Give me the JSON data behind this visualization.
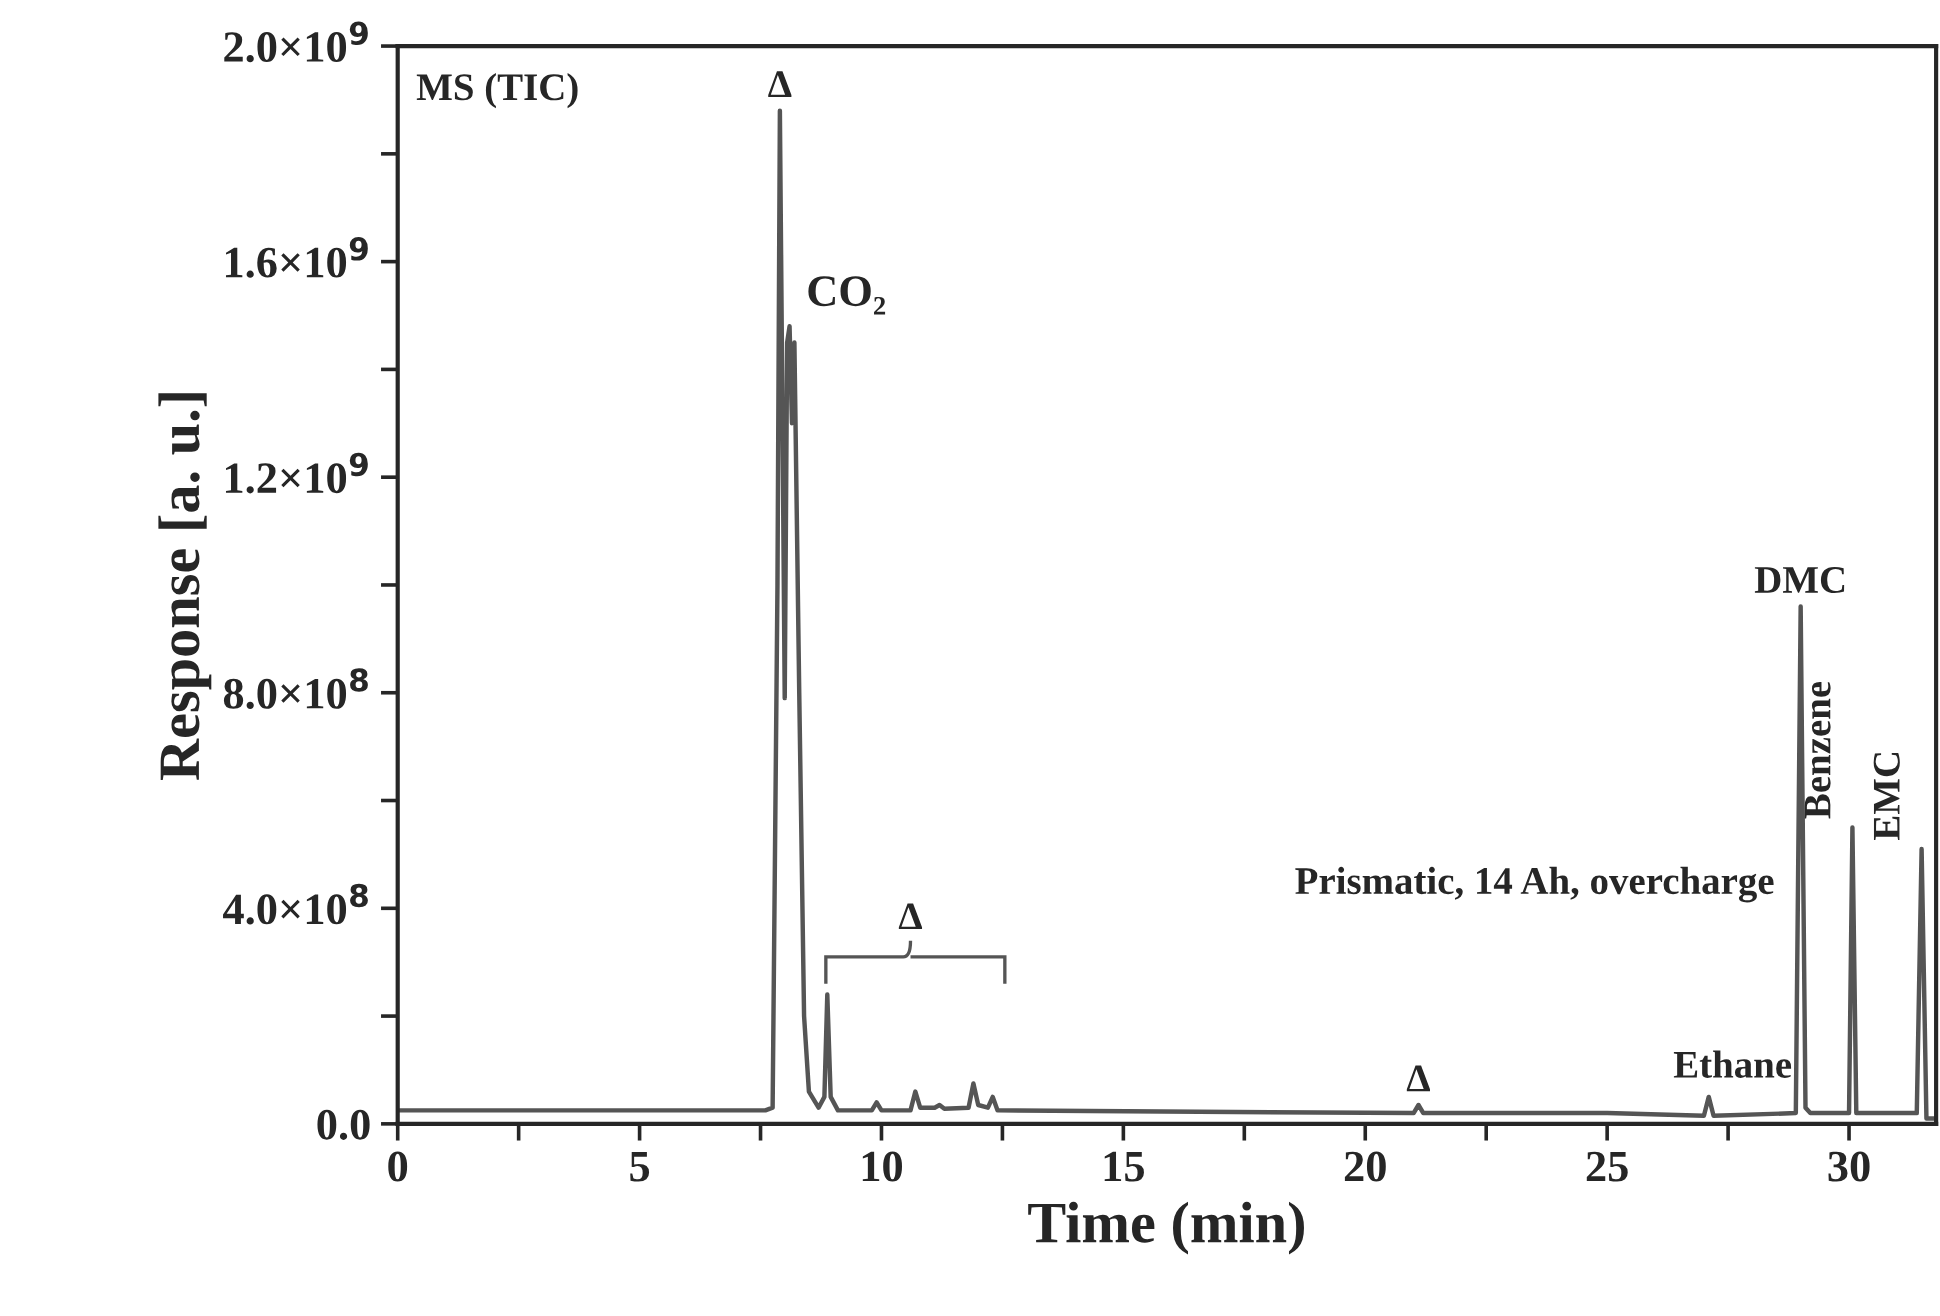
{
  "chart_data": {
    "type": "line",
    "xlabel": "Time (min)",
    "ylabel": "Response [a. u.]",
    "x": [
      0,
      7.6,
      7.75,
      7.85,
      7.9,
      7.95,
      8.0,
      8.05,
      8.1,
      8.15,
      8.2,
      8.3,
      8.4,
      8.5,
      8.7,
      8.82,
      8.88,
      8.95,
      9.1,
      9.8,
      9.9,
      10.0,
      10.6,
      10.7,
      10.8,
      11.1,
      11.2,
      11.3,
      11.8,
      11.9,
      12.0,
      12.2,
      12.3,
      12.4,
      21.0,
      21.1,
      21.2,
      25,
      27.0,
      27.1,
      27.2,
      28.9,
      29.0,
      29.1,
      29.2,
      30.0,
      30.07,
      30.15,
      31.4,
      31.5,
      31.6,
      31.8
    ],
    "series": [
      {
        "color": "#555555",
        "values": [
          25000000.0,
          25000000.0,
          30000000.0,
          1000000000.0,
          1880000000.0,
          1350000000.0,
          790000000.0,
          1450000000.0,
          1480000000.0,
          1300000000.0,
          1450000000.0,
          800000000.0,
          200000000.0,
          60000000.0,
          30000000.0,
          50000000.0,
          240000000.0,
          50000000.0,
          25000000.0,
          25000000.0,
          40000000.0,
          25000000.0,
          25000000.0,
          60000000.0,
          30000000.0,
          30000000.0,
          35000000.0,
          28000000.0,
          30000000.0,
          75000000.0,
          35000000.0,
          30000000.0,
          50000000.0,
          25000000.0,
          20000000.0,
          35000000.0,
          20000000.0,
          20000000.0,
          15000000.0,
          50000000.0,
          15000000.0,
          20000000.0,
          960000000.0,
          30000000.0,
          20000000.0,
          20000000.0,
          550000000.0,
          20000000.0,
          20000000.0,
          510000000.0,
          10000000.0,
          10000000.0
        ]
      }
    ],
    "xlim": [
      0,
      31.8
    ],
    "xticks": [
      0,
      {
        "value": 2.5,
        "label": null
      },
      5,
      {
        "value": 7.5,
        "label": null
      },
      10,
      {
        "value": 12.5,
        "label": null
      },
      15,
      {
        "value": 17.5,
        "label": null
      },
      20,
      {
        "value": 22.5,
        "label": null
      },
      25,
      {
        "value": 27.5,
        "label": null
      },
      30
    ],
    "ylim": [
      0,
      2000000000.0
    ],
    "yticks": [
      {
        "value": 0,
        "label": "0.0"
      },
      {
        "value": 200000000.0,
        "label": null
      },
      {
        "value": 400000000.0,
        "label": "4.0×10$^{8}$"
      },
      {
        "value": 600000000.0,
        "label": null
      },
      {
        "value": 800000000.0,
        "label": "8.0×10$^{8}$"
      },
      {
        "value": 1000000000.0,
        "label": null
      },
      {
        "value": 1200000000.0,
        "label": "1.2×10$^{9}$"
      },
      {
        "value": 1400000000.0,
        "label": null
      },
      {
        "value": 1600000000.0,
        "label": "1.6×10$^{9}$"
      },
      {
        "value": 1800000000.0,
        "label": null
      },
      {
        "value": 2000000000.0,
        "label": "2.0×10$^{9}$"
      }
    ],
    "grid": false,
    "legend": false,
    "annotations": [
      "MS (TIC)",
      {
        "text": "Δ",
        "x": 7.9,
        "y": 1880000000.0
      },
      {
        "text": "CO₂",
        "x": 8.1,
        "y": 1480000000.0
      },
      "Δ",
      "Prismatic, 14 Ah, overcharge",
      {
        "text": "Δ",
        "x": 21.1,
        "y": 35000000.0
      },
      {
        "text": "Ethane",
        "x": 27.1,
        "y": 50000000.0
      },
      {
        "text": "DMC",
        "x": 29.0,
        "y": 960000000.0
      },
      {
        "text": "Benzene",
        "x": 30.07,
        "y": 550000000.0
      },
      {
        "text": "EMC",
        "x": 31.5,
        "y": 510000000.0
      }
    ]
  }
}
